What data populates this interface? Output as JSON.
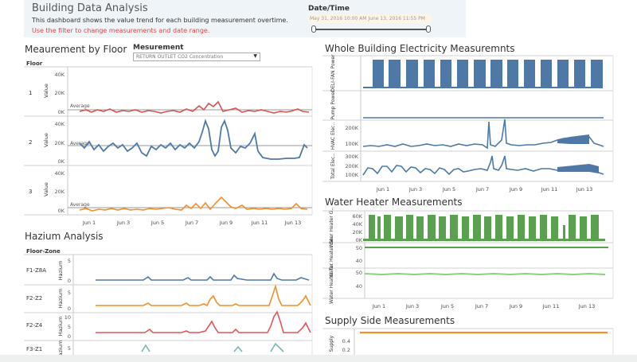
{
  "header": {
    "title": "Building Data Analysis",
    "description": "This dashboard shows the value trend for each building measurement overtime.",
    "note": "Use the filter to change measurements and date range."
  },
  "date_filter": {
    "label": "Date/Time",
    "range_text": "May 31, 2016 10:00 AM   June 13, 2016 11:55 PM",
    "start_fraction": 0.0,
    "end_fraction": 1.0
  },
  "measurement_by_floor": {
    "title": "Meaurement by Floor",
    "floor_header": "Floor",
    "selector_label": "Mesurement",
    "selector_value": "RETURN OUTLET CO2 Concentration",
    "value_axis_label": "Value",
    "average_label": "Average",
    "rows": [
      {
        "floor": "1",
        "ticks": [
          "40K",
          "20K",
          "0K"
        ]
      },
      {
        "floor": "2",
        "ticks": [
          "40K",
          "20K",
          "0K"
        ]
      },
      {
        "floor": "3",
        "ticks": [
          "40K",
          "20K",
          "0K"
        ]
      }
    ],
    "x_ticks": [
      "Jun 1",
      "Jun 3",
      "Jun 5",
      "Jun 7",
      "Jun 9",
      "Jun 11",
      "Jun 13"
    ]
  },
  "whole_building": {
    "title": "Whole Building Electricity Measuremnts",
    "rows": [
      {
        "label": "DELI-FAN Power",
        "ticks": []
      },
      {
        "label": "Pump Power",
        "ticks": []
      },
      {
        "label": "HVAC Elec..",
        "ticks": [
          "200K",
          "100K"
        ]
      },
      {
        "label": "Total Elec..",
        "ticks": [
          "300K",
          "200K",
          "100K"
        ]
      }
    ],
    "x_ticks": [
      "Jun 1",
      "Jun 3",
      "Jun 5",
      "Jun 7",
      "Jun 9",
      "Jun 11",
      "Jun 13"
    ]
  },
  "water_heater": {
    "title": "Water Heater Measurements",
    "rows": [
      {
        "label": "Water Heater G..",
        "ticks": [
          "60K",
          "40K",
          "20K",
          "0K"
        ]
      },
      {
        "label": "Water Heater Se..",
        "ticks": [
          "50",
          "40"
        ]
      },
      {
        "label": "Water Heater Ta..",
        "ticks": [
          "50",
          "40"
        ]
      }
    ],
    "x_ticks": [
      "Jun 1",
      "Jun 3",
      "Jun 5",
      "Jun 7",
      "Jun 9",
      "Jun 11",
      "Jun 13"
    ]
  },
  "hazium": {
    "title": "Hazium Analysis",
    "zone_header": "Floor-Zone",
    "axis_label": "Hazium",
    "rows": [
      {
        "zone": "F1-Z8A",
        "ticks": [
          "5",
          "0"
        ]
      },
      {
        "zone": "F2-Z2",
        "ticks": [
          "5",
          "0"
        ]
      },
      {
        "zone": "F2-Z4",
        "ticks": [
          "10",
          "5",
          "0"
        ]
      },
      {
        "zone": "F3-Z1",
        "ticks": [
          "5"
        ]
      }
    ]
  },
  "supply_side": {
    "title": "Supply Side Measurements",
    "axis_label": "Supply",
    "ticks": [
      "0.4",
      "0.2"
    ]
  },
  "colors": {
    "floor1": "#d9534f",
    "floor2": "#4e79a7",
    "floor3": "#f28e2b",
    "electric": "#4e79a7",
    "water": "#59a14f",
    "hazium_f1": "#4e79a7",
    "hazium_f2z2": "#f28e2b",
    "hazium_f2z4": "#e15759",
    "hazium_f3": "#76b7b2",
    "supply": "#f28e2b"
  }
}
